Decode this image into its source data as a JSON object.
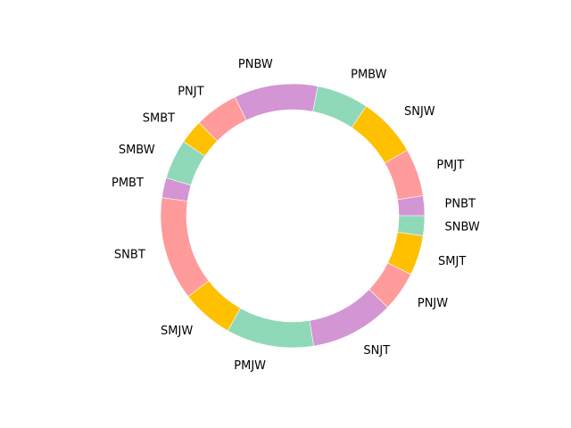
{
  "chart_data": {
    "type": "pie",
    "style": "donut",
    "title": "",
    "start_angle_deg": 0,
    "direction": "counterclockwise",
    "categories": [
      "PNBT",
      "PMJT",
      "SNJW",
      "PMBW",
      "PNBW",
      "PNJT",
      "SMBT",
      "SMBW",
      "PMBT",
      "SNBT",
      "SMJW",
      "PMJW",
      "SNJT",
      "PNJW",
      "SMJT",
      "SNBW"
    ],
    "values": [
      2.5,
      6,
      7.5,
      6.5,
      10.5,
      5.5,
      3,
      5,
      2.5,
      13,
      6.5,
      11,
      10.5,
      5,
      5,
      2.5
    ],
    "colors": [
      "#d395d4",
      "#ff9b9b",
      "#ffc000",
      "#90d9b8",
      "#d395d4",
      "#ff9b9b",
      "#ffc000",
      "#90d9b8",
      "#d395d4",
      "#ff9b9b",
      "#ffc000",
      "#90d9b8",
      "#d395d4",
      "#ff9b9b",
      "#ffc000",
      "#90d9b8"
    ],
    "legend": "none",
    "grid": false
  }
}
